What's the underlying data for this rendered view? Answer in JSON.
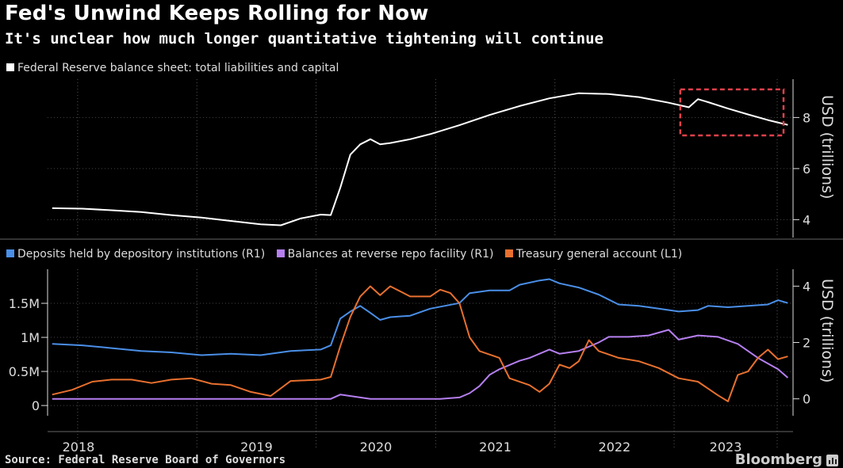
{
  "header": {
    "title": "Fed's Unwind Keeps Rolling for Now",
    "subtitle": "It's unclear how much longer quantitative tightening will continue"
  },
  "footer": {
    "source": "Source: Federal Reserve Board of Governors",
    "brand": "Bloomberg"
  },
  "colors": {
    "background": "#000000",
    "balance_sheet": "#ffffff",
    "deposits": "#4a8fe8",
    "reverse_repo": "#b57ff0",
    "tga": "#e8702f",
    "highlight_box": "#e0404a"
  },
  "chart_data": [
    {
      "type": "line",
      "legend": [
        "Federal Reserve balance sheet: total liabilities and capital"
      ],
      "ylabel": "USD (trillions)",
      "y_axis_side": "right",
      "ylim": [
        3.3,
        9.5
      ],
      "yticks": [
        4,
        6,
        8
      ],
      "x_range": [
        "2017-10-01",
        "2023-12-31"
      ],
      "annotation": "dashed red box highlighting mid-2023 onward",
      "series": [
        {
          "name": "Federal Reserve balance sheet: total liabilities and capital",
          "points": [
            [
              "2017-10",
              4.45
            ],
            [
              "2018-01",
              4.43
            ],
            [
              "2018-04",
              4.37
            ],
            [
              "2018-07",
              4.3
            ],
            [
              "2018-10",
              4.18
            ],
            [
              "2019-01",
              4.08
            ],
            [
              "2019-04",
              3.95
            ],
            [
              "2019-07",
              3.82
            ],
            [
              "2019-09",
              3.78
            ],
            [
              "2019-11",
              4.05
            ],
            [
              "2020-01",
              4.2
            ],
            [
              "2020-02",
              4.18
            ],
            [
              "2020-03",
              5.25
            ],
            [
              "2020-04",
              6.55
            ],
            [
              "2020-05",
              6.95
            ],
            [
              "2020-06",
              7.15
            ],
            [
              "2020-07",
              6.95
            ],
            [
              "2020-08",
              7.0
            ],
            [
              "2020-10",
              7.15
            ],
            [
              "2020-12",
              7.35
            ],
            [
              "2021-03",
              7.7
            ],
            [
              "2021-06",
              8.1
            ],
            [
              "2021-09",
              8.45
            ],
            [
              "2021-12",
              8.75
            ],
            [
              "2022-03",
              8.95
            ],
            [
              "2022-06",
              8.92
            ],
            [
              "2022-09",
              8.8
            ],
            [
              "2022-12",
              8.58
            ],
            [
              "2023-02",
              8.4
            ],
            [
              "2023-03",
              8.72
            ],
            [
              "2023-04",
              8.6
            ],
            [
              "2023-06",
              8.35
            ],
            [
              "2023-08",
              8.12
            ],
            [
              "2023-10",
              7.9
            ],
            [
              "2023-12",
              7.71
            ]
          ]
        }
      ]
    },
    {
      "type": "line",
      "legend": [
        "Deposits held by depository institutions (R1)",
        "Balances at reverse repo facility (R1)",
        "Treasury general account (L1)"
      ],
      "left_axis": {
        "ylim": [
          -150000,
          2000000
        ],
        "yticks": [
          0,
          500000,
          1000000,
          1500000
        ],
        "ytick_labels": [
          "0",
          "0.5M",
          "1M",
          "1.5M"
        ]
      },
      "right_axis": {
        "ylabel": "USD (trillions)",
        "ylim": [
          -0.6,
          4.6
        ],
        "yticks": [
          0,
          2,
          4
        ],
        "ytick_labels": [
          "0",
          "2",
          "4"
        ]
      },
      "x_ticks": [
        "2018",
        "2019",
        "2020",
        "2021",
        "2022",
        "2023"
      ],
      "x_range": [
        "2017-10-01",
        "2023-12-31"
      ],
      "series": [
        {
          "name": "Deposits held by depository institutions (R1)",
          "axis": "right",
          "points": [
            [
              "2017-10",
              1.95
            ],
            [
              "2018-01",
              1.9
            ],
            [
              "2018-04",
              1.8
            ],
            [
              "2018-07",
              1.7
            ],
            [
              "2018-10",
              1.65
            ],
            [
              "2019-01",
              1.55
            ],
            [
              "2019-04",
              1.6
            ],
            [
              "2019-07",
              1.55
            ],
            [
              "2019-10",
              1.7
            ],
            [
              "2020-01",
              1.75
            ],
            [
              "2020-02",
              1.9
            ],
            [
              "2020-03",
              2.85
            ],
            [
              "2020-04",
              3.1
            ],
            [
              "2020-05",
              3.3
            ],
            [
              "2020-06",
              3.05
            ],
            [
              "2020-07",
              2.8
            ],
            [
              "2020-08",
              2.9
            ],
            [
              "2020-10",
              2.95
            ],
            [
              "2020-12",
              3.2
            ],
            [
              "2021-03",
              3.4
            ],
            [
              "2021-04",
              3.75
            ],
            [
              "2021-06",
              3.85
            ],
            [
              "2021-08",
              3.85
            ],
            [
              "2021-09",
              4.05
            ],
            [
              "2021-11",
              4.2
            ],
            [
              "2021-12",
              4.25
            ],
            [
              "2022-01",
              4.1
            ],
            [
              "2022-03",
              3.95
            ],
            [
              "2022-05",
              3.7
            ],
            [
              "2022-07",
              3.35
            ],
            [
              "2022-09",
              3.3
            ],
            [
              "2022-11",
              3.2
            ],
            [
              "2023-01",
              3.1
            ],
            [
              "2023-03",
              3.15
            ],
            [
              "2023-04",
              3.3
            ],
            [
              "2023-06",
              3.25
            ],
            [
              "2023-08",
              3.3
            ],
            [
              "2023-10",
              3.35
            ],
            [
              "2023-11",
              3.5
            ],
            [
              "2023-12",
              3.4
            ]
          ]
        },
        {
          "name": "Balances at reverse repo facility (R1)",
          "axis": "right",
          "points": [
            [
              "2017-10",
              0.0
            ],
            [
              "2018-06",
              0.0
            ],
            [
              "2019-01",
              0.0
            ],
            [
              "2019-10",
              0.0
            ],
            [
              "2020-02",
              0.0
            ],
            [
              "2020-03",
              0.15
            ],
            [
              "2020-06",
              0.0
            ],
            [
              "2021-01",
              0.0
            ],
            [
              "2021-03",
              0.05
            ],
            [
              "2021-04",
              0.2
            ],
            [
              "2021-05",
              0.45
            ],
            [
              "2021-06",
              0.85
            ],
            [
              "2021-07",
              1.05
            ],
            [
              "2021-09",
              1.35
            ],
            [
              "2021-10",
              1.45
            ],
            [
              "2021-12",
              1.75
            ],
            [
              "2022-01",
              1.6
            ],
            [
              "2022-03",
              1.7
            ],
            [
              "2022-05",
              2.0
            ],
            [
              "2022-06",
              2.2
            ],
            [
              "2022-08",
              2.2
            ],
            [
              "2022-10",
              2.25
            ],
            [
              "2022-12",
              2.45
            ],
            [
              "2023-01",
              2.1
            ],
            [
              "2023-03",
              2.25
            ],
            [
              "2023-05",
              2.2
            ],
            [
              "2023-07",
              1.95
            ],
            [
              "2023-09",
              1.45
            ],
            [
              "2023-11",
              1.05
            ],
            [
              "2023-12",
              0.75
            ]
          ]
        },
        {
          "name": "Treasury general account (L1)",
          "axis": "left",
          "points": [
            [
              "2017-10",
              160000
            ],
            [
              "2017-12",
              230000
            ],
            [
              "2018-02",
              350000
            ],
            [
              "2018-04",
              380000
            ],
            [
              "2018-06",
              380000
            ],
            [
              "2018-08",
              330000
            ],
            [
              "2018-10",
              380000
            ],
            [
              "2018-12",
              400000
            ],
            [
              "2019-02",
              320000
            ],
            [
              "2019-04",
              300000
            ],
            [
              "2019-06",
              200000
            ],
            [
              "2019-08",
              140000
            ],
            [
              "2019-10",
              360000
            ],
            [
              "2020-01",
              380000
            ],
            [
              "2020-02",
              420000
            ],
            [
              "2020-03",
              870000
            ],
            [
              "2020-04",
              1300000
            ],
            [
              "2020-05",
              1600000
            ],
            [
              "2020-06",
              1750000
            ],
            [
              "2020-07",
              1620000
            ],
            [
              "2020-08",
              1750000
            ],
            [
              "2020-10",
              1600000
            ],
            [
              "2020-12",
              1600000
            ],
            [
              "2021-01",
              1700000
            ],
            [
              "2021-02",
              1650000
            ],
            [
              "2021-03",
              1500000
            ],
            [
              "2021-04",
              1000000
            ],
            [
              "2021-05",
              800000
            ],
            [
              "2021-07",
              700000
            ],
            [
              "2021-08",
              400000
            ],
            [
              "2021-10",
              300000
            ],
            [
              "2021-11",
              200000
            ],
            [
              "2021-12",
              320000
            ],
            [
              "2022-01",
              600000
            ],
            [
              "2022-02",
              550000
            ],
            [
              "2022-03",
              650000
            ],
            [
              "2022-04",
              960000
            ],
            [
              "2022-05",
              800000
            ],
            [
              "2022-07",
              700000
            ],
            [
              "2022-09",
              650000
            ],
            [
              "2022-11",
              550000
            ],
            [
              "2023-01",
              400000
            ],
            [
              "2023-03",
              350000
            ],
            [
              "2023-05",
              150000
            ],
            [
              "2023-06",
              60000
            ],
            [
              "2023-07",
              450000
            ],
            [
              "2023-08",
              500000
            ],
            [
              "2023-09",
              700000
            ],
            [
              "2023-10",
              820000
            ],
            [
              "2023-11",
              680000
            ],
            [
              "2023-12",
              720000
            ]
          ]
        }
      ]
    }
  ]
}
